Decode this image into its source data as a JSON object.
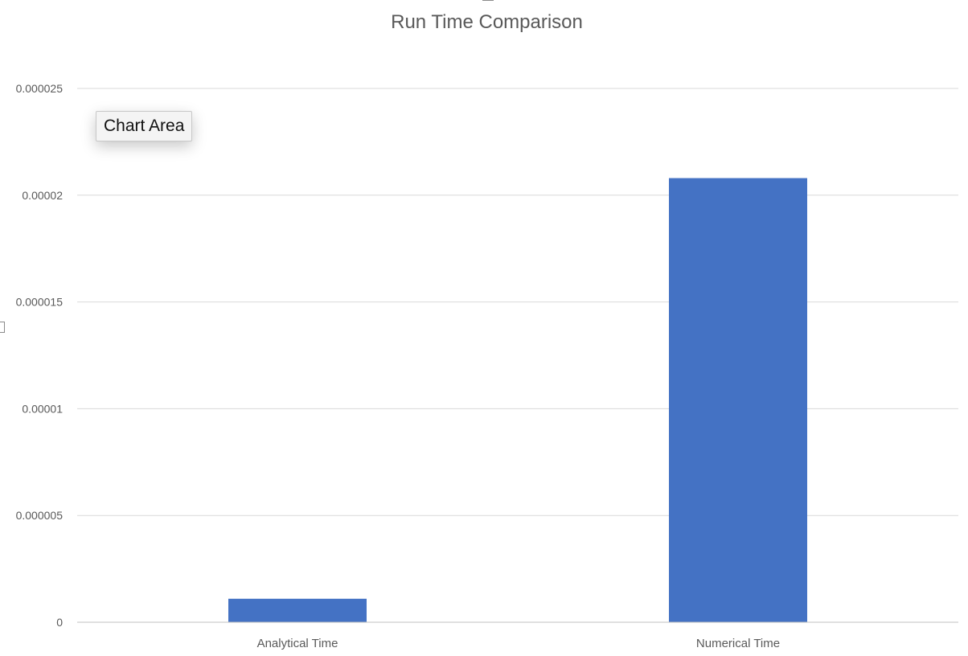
{
  "chart_data": {
    "type": "bar",
    "title": "Run Time Comparison",
    "categories": [
      "Analytical Time",
      "Numerical Time"
    ],
    "values": [
      1.1e-06,
      2.08e-05
    ],
    "ylim": [
      0,
      2.5e-05
    ],
    "yticks": [
      "0",
      "0.000005",
      "0.00001",
      "0.000015",
      "0.00002",
      "0.000025"
    ],
    "ytick_values": [
      0,
      5e-06,
      1e-05,
      1.5e-05,
      2e-05,
      2.5e-05
    ],
    "grid": true,
    "bar_color": "#4472C4",
    "gridline_color": "#d9d9d9",
    "xlabel": "",
    "ylabel": ""
  },
  "tooltip": {
    "text": "Chart Area"
  }
}
